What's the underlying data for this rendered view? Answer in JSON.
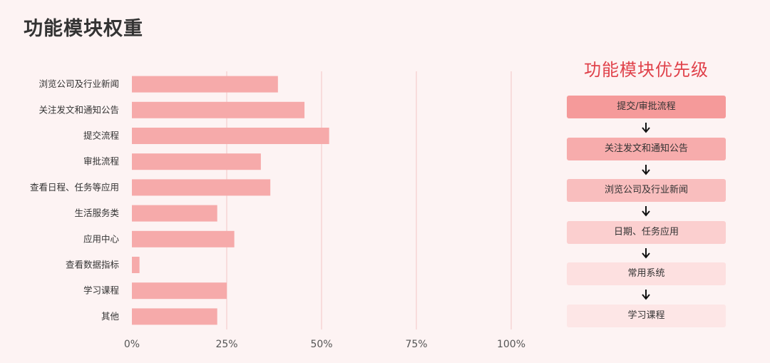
{
  "title": "功能模块权重",
  "chart_data": {
    "type": "bar",
    "orientation": "horizontal",
    "categories": [
      "浏览公司及行业新闻",
      "关注发文和通知公告",
      "提交流程",
      "审批流程",
      "查看日程、任务等应用",
      "生活服务类",
      "应用中心",
      "查看数据指标",
      "学习课程",
      "其他"
    ],
    "values": [
      38.5,
      45.5,
      52,
      34,
      36.5,
      22.5,
      27,
      2,
      25,
      22.5
    ],
    "x_ticks": [
      "0%",
      "25%",
      "50%",
      "75%",
      "100%"
    ],
    "xlim": [
      0,
      100
    ],
    "bar_color": "#f6aaaa",
    "grid_color": "#f3c5c5",
    "grid": true
  },
  "priority": {
    "title": "功能模块优先级",
    "items": [
      {
        "label": "提交/审批流程",
        "color": "#f59a9a"
      },
      {
        "label": "关注发文和通知公告",
        "color": "#f7acac"
      },
      {
        "label": "浏览公司及行业新闻",
        "color": "#f9bebe"
      },
      {
        "label": "日期、任务应用",
        "color": "#fbcfcf"
      },
      {
        "label": "常用系统",
        "color": "#fde0e0"
      },
      {
        "label": "学习课程",
        "color": "#fde6e6"
      }
    ]
  }
}
